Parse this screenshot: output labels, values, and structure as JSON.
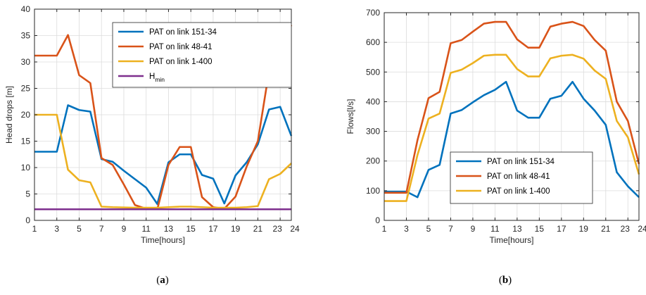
{
  "colors": {
    "blue": "#0072BD",
    "orange": "#D95319",
    "yellow": "#EDB120",
    "purple": "#7E2F8E"
  },
  "chart_data": [
    {
      "type": "line",
      "panel": "a",
      "caption": "(a)",
      "xlabel": "Time[hours]",
      "ylabel": "Head drops [m]",
      "xlim": [
        1,
        24
      ],
      "ylim": [
        0,
        40
      ],
      "xticks": [
        1,
        3,
        5,
        7,
        9,
        11,
        13,
        15,
        17,
        19,
        21,
        23,
        24
      ],
      "xtick_labels": [
        "1",
        "3",
        "5",
        "7",
        "9",
        "11",
        "13",
        "15",
        "17",
        "19",
        "21",
        "23",
        "24"
      ],
      "yticks": [
        0,
        5,
        10,
        15,
        20,
        25,
        30,
        35,
        40
      ],
      "grid": true,
      "legend_position": "top-right",
      "x": [
        1,
        2,
        3,
        4,
        5,
        6,
        7,
        8,
        9,
        10,
        11,
        12,
        13,
        14,
        15,
        16,
        17,
        18,
        19,
        20,
        21,
        22,
        23,
        24
      ],
      "series": [
        {
          "name": "PAT on link 151-34",
          "color": "blue",
          "values": [
            13,
            13,
            13,
            21.8,
            20.9,
            20.6,
            11.6,
            11.1,
            9.4,
            7.8,
            6.2,
            3.1,
            11,
            12.5,
            12.5,
            8.6,
            7.9,
            3.2,
            8.5,
            11,
            14.4,
            21,
            21.5,
            16
          ]
        },
        {
          "name": "PAT on link 48-41",
          "color": "orange",
          "values": [
            31.2,
            31.2,
            31.2,
            35.1,
            27.5,
            26,
            11.8,
            10.5,
            6.8,
            2.9,
            2.2,
            2.1,
            10.5,
            13.9,
            13.9,
            4.4,
            2.5,
            2.2,
            4.5,
            10.2,
            15,
            28.2,
            32.2,
            37
          ]
        },
        {
          "name": "PAT on link 1-400",
          "color": "yellow",
          "values": [
            20,
            20,
            20,
            9.6,
            7.6,
            7.2,
            2.6,
            2.5,
            2.45,
            2.4,
            2.4,
            2.4,
            2.5,
            2.6,
            2.6,
            2.5,
            2.4,
            2.4,
            2.4,
            2.5,
            2.7,
            7.8,
            8.8,
            10.8
          ]
        },
        {
          "name_main": "H",
          "name_sub": "min",
          "color": "purple",
          "values": [
            2.1,
            2.1,
            2.1,
            2.1,
            2.1,
            2.1,
            2.1,
            2.1,
            2.1,
            2.1,
            2.1,
            2.1,
            2.1,
            2.1,
            2.1,
            2.1,
            2.1,
            2.1,
            2.1,
            2.1,
            2.1,
            2.1,
            2.1,
            2.1
          ]
        }
      ]
    },
    {
      "type": "line",
      "panel": "b",
      "caption": "(b)",
      "xlabel": "Time[hours]",
      "ylabel": "Flows[l/s]",
      "xlim": [
        1,
        24
      ],
      "ylim": [
        0,
        700
      ],
      "xticks": [
        1,
        3,
        5,
        7,
        9,
        11,
        13,
        15,
        17,
        19,
        21,
        23,
        24
      ],
      "xtick_labels": [
        "1",
        "3",
        "5",
        "7",
        "9",
        "11",
        "13",
        "15",
        "17",
        "19",
        "21",
        "23",
        "24"
      ],
      "yticks": [
        0,
        100,
        200,
        300,
        400,
        500,
        600,
        700
      ],
      "grid": true,
      "legend_position": "bottom-center",
      "x": [
        1,
        2,
        3,
        4,
        5,
        6,
        7,
        8,
        9,
        10,
        11,
        12,
        13,
        14,
        15,
        16,
        17,
        18,
        19,
        20,
        21,
        22,
        23,
        24
      ],
      "series": [
        {
          "name": "PAT on link 151-34",
          "color": "blue",
          "values": [
            97,
            97,
            97,
            78,
            170,
            187,
            360,
            372,
            398,
            422,
            440,
            467,
            370,
            346,
            346,
            410,
            420,
            467,
            410,
            370,
            322,
            162,
            115,
            78
          ]
        },
        {
          "name": "PAT on link 48-41",
          "color": "orange",
          "values": [
            93,
            93,
            93,
            270,
            412,
            433,
            597,
            608,
            636,
            663,
            669,
            669,
            610,
            582,
            582,
            653,
            663,
            669,
            655,
            608,
            572,
            400,
            335,
            190
          ]
        },
        {
          "name": "PAT on link 1-400",
          "color": "yellow",
          "values": [
            65,
            65,
            65,
            220,
            343,
            360,
            497,
            508,
            530,
            555,
            558,
            558,
            510,
            485,
            485,
            546,
            555,
            558,
            545,
            505,
            477,
            335,
            280,
            155
          ]
        }
      ]
    }
  ]
}
